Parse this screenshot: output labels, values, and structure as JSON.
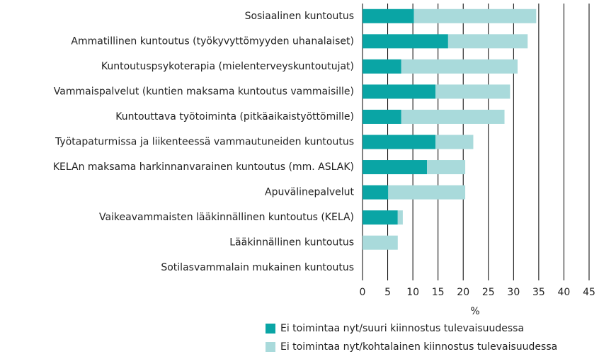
{
  "chart_data": {
    "type": "stacked-barh",
    "categories": [
      "Sosiaalinen kuntoutus",
      "Ammatillinen kuntoutus (työkyvyttömyyden uhanalaiset)",
      "Kuntoutuspsykoterapia (mielenterveyskuntoutujat)",
      "Vammaispalvelut (kuntien maksama kuntoutus vammaisille)",
      "Kuntouttava työtoiminta (pitkäaikaistyöttömille)",
      "Työtapaturmissa ja liikenteessä vammautuneiden kuntoutus",
      "KELAn maksama harkinnanvarainen kuntoutus (mm. ASLAK)",
      "Apuvälinepalvelut",
      "Vaikeavammaisten lääkinnällinen kuntoutus (KELA)",
      "Lääkinnällinen kuntoutus",
      "Sotilasvammalain mukainen kuntoutus"
    ],
    "series": [
      {
        "name": "Ei toimintaa nyt/suuri kiinnostus tulevaisuudessa",
        "color": "#0aa5a5",
        "values": [
          10.2,
          17,
          7.7,
          14.5,
          7.7,
          14.5,
          12.8,
          5.1,
          7,
          0,
          0
        ]
      },
      {
        "name": "Ei toimintaa nyt/kohtalainen kiinnostus tulevaisuudessa",
        "color": "#a9dadb",
        "values": [
          24.3,
          15.8,
          23.1,
          14.8,
          20.5,
          7.5,
          7.6,
          15.3,
          1,
          7,
          0
        ]
      }
    ],
    "xlabel": "%",
    "xlim": [
      0,
      45
    ],
    "xticks": [
      0,
      5,
      10,
      15,
      20,
      25,
      30,
      35,
      40,
      45
    ],
    "grid": true
  }
}
